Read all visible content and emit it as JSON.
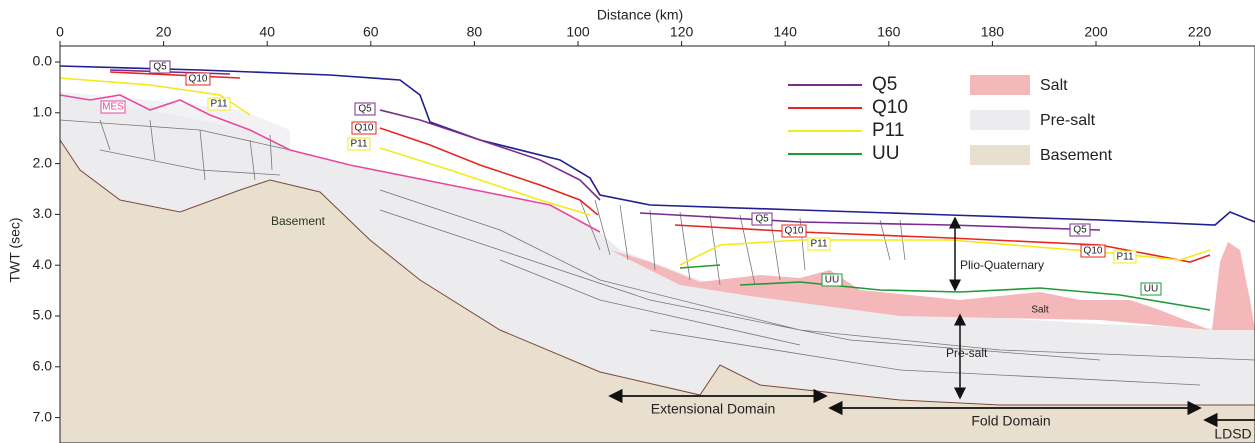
{
  "x_axis": {
    "label": "Distance (km)",
    "ticks": [
      0,
      20,
      40,
      60,
      80,
      100,
      120,
      140,
      160,
      180,
      200,
      220
    ]
  },
  "y_axis": {
    "label": "TWT (sec)",
    "ticks": [
      {
        "value": 0,
        "label": "0.0"
      },
      {
        "value": 1,
        "label": "1.0"
      },
      {
        "value": 2,
        "label": "2.0"
      },
      {
        "value": 3,
        "label": "3.0"
      },
      {
        "value": 4,
        "label": "4.0"
      },
      {
        "value": 5,
        "label": "5.0"
      },
      {
        "value": 6,
        "label": "6.0"
      },
      {
        "value": 7,
        "label": "7.0"
      }
    ]
  },
  "legend": {
    "lines": [
      {
        "name": "Q5",
        "color": "#7b2d8e"
      },
      {
        "name": "Q10",
        "color": "#e8261f"
      },
      {
        "name": "P11",
        "color": "#f2ea1c"
      },
      {
        "name": "UU",
        "color": "#1f9a3a"
      }
    ],
    "areas": [
      {
        "name": "Salt",
        "color": "#f4b8bb"
      },
      {
        "name": "Pre-salt",
        "color": "#ececef"
      },
      {
        "name": "Basement",
        "color": "#e9dfcf"
      }
    ]
  },
  "annotations": {
    "mes": "MES",
    "basement": "Basement",
    "salt": "Salt",
    "plio_quaternary": "Plio-Quaternary",
    "pre_salt": "Pre-salt",
    "extensional_domain": "Extensional Domain",
    "fold_domain": "Fold Domain",
    "ldsd": "LDSD"
  }
}
